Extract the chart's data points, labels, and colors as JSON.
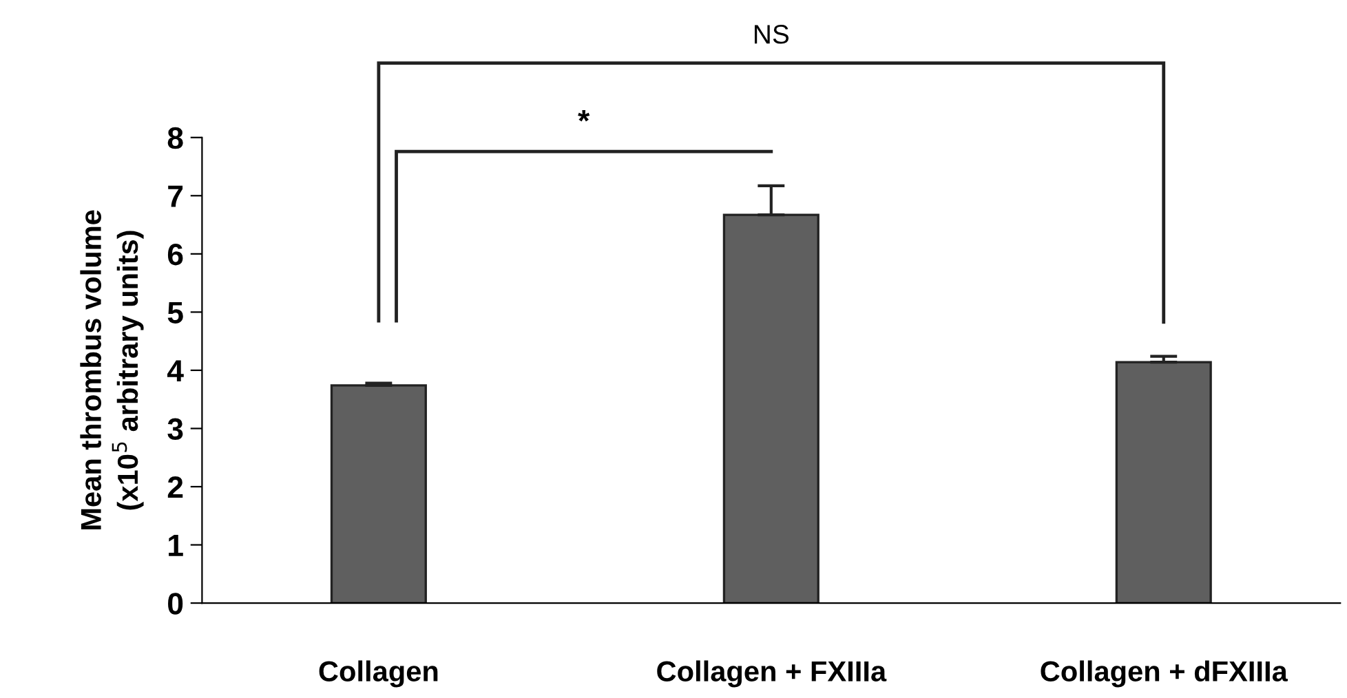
{
  "chart_data": {
    "type": "bar",
    "ylabel": "Mean thrombus volume\n(x10$^{5}$ arbitrary units)",
    "categories": [
      "Collagen",
      "Collagen + FXIIIa",
      "Collagen + dFXIIIa"
    ],
    "values": [
      3.74,
      6.67,
      4.14
    ],
    "errors": [
      0.04,
      0.5,
      0.1
    ],
    "color": "#5f5f5f",
    "ylim": [
      0,
      8
    ],
    "yticks": [
      0,
      1,
      2,
      3,
      4,
      5,
      6,
      7,
      8
    ],
    "annotations": [
      "*",
      "NS"
    ],
    "grid": false,
    "legend": false
  }
}
